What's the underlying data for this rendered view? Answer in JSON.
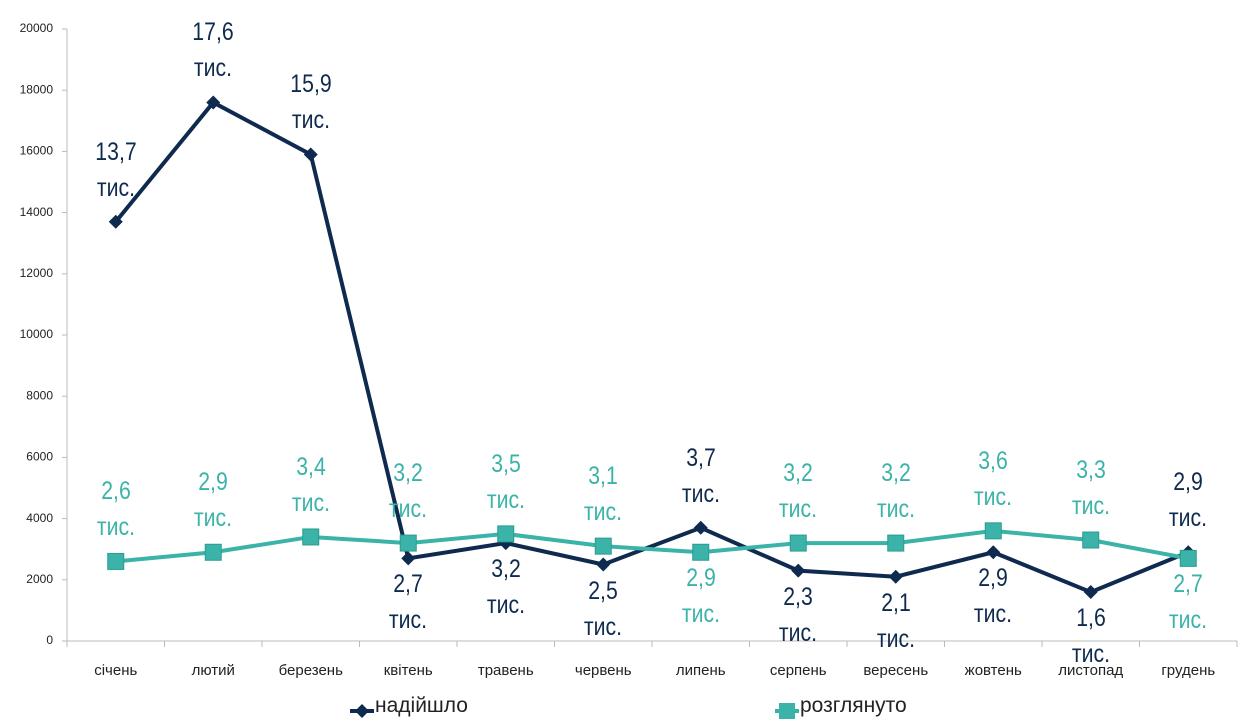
{
  "chart_data": {
    "type": "line",
    "categories": [
      "січень",
      "лютий",
      "березень",
      "квітень",
      "травень",
      "червень",
      "липень",
      "серпень",
      "вересень",
      "жовтень",
      "листопад",
      "грудень"
    ],
    "series": [
      {
        "name": "надійшло",
        "color": "#0f2a4f",
        "values": [
          13700,
          17600,
          15900,
          2700,
          3200,
          2500,
          3700,
          2300,
          2100,
          2900,
          1600,
          2900
        ],
        "value_labels": [
          "13,7 тис.",
          "17,6 тис.",
          "15,9 тис.",
          "2,7 тис.",
          "3,2 тис.",
          "2,5 тис.",
          "3,7 тис.",
          "2,3 тис.",
          "2,1 тис.",
          "2,9 тис.",
          "1,6 тис.",
          "2,9 тис."
        ]
      },
      {
        "name": "розглянуто",
        "color": "#3bb3a8",
        "values": [
          2600,
          2900,
          3400,
          3200,
          3500,
          3100,
          2900,
          3200,
          3200,
          3600,
          3300,
          2700
        ],
        "value_labels": [
          "2,6 тис.",
          "2,9 тис.",
          "3,4 тис.",
          "3,2 тис.",
          "3,5 тис.",
          "3,1 тис.",
          "2,9 тис.",
          "3,2 тис.",
          "3,2 тис.",
          "3,6 тис.",
          "3,3 тис.",
          "2,7 тис."
        ]
      }
    ],
    "ylim": [
      0,
      20000
    ],
    "yticks": [
      0,
      2000,
      4000,
      6000,
      8000,
      10000,
      12000,
      14000,
      16000,
      18000,
      20000
    ],
    "legend": "bottom"
  }
}
